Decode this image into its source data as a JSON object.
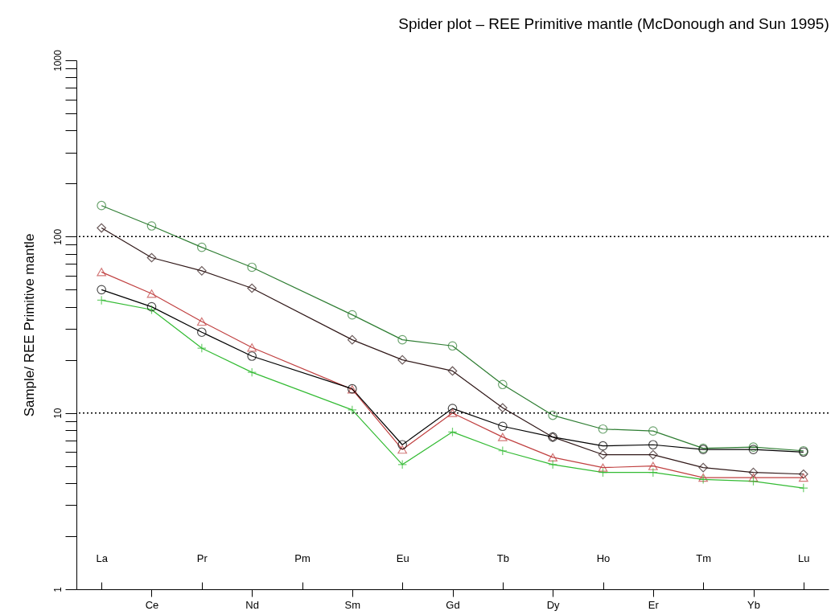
{
  "chart_data": {
    "type": "line",
    "title": "Spider plot – REE Primitive mantle (McDonough  and  Sun 1995)",
    "ylabel": "Sample/ REE Primitive mantle",
    "categories": [
      "La",
      "Ce",
      "Pr",
      "Nd",
      "Pm",
      "Sm",
      "Eu",
      "Gd",
      "Tb",
      "Dy",
      "Ho",
      "Er",
      "Tm",
      "Yb",
      "Lu"
    ],
    "series": [
      {
        "color": "#2e7d32",
        "marker": "circle",
        "values": [
          150,
          115,
          87,
          67,
          null,
          36,
          26,
          24,
          14.5,
          9.7,
          8.1,
          7.9,
          6.3,
          6.4,
          6.1
        ]
      },
      {
        "color": "#301818",
        "marker": "diamond",
        "values": [
          112,
          76,
          64,
          51,
          null,
          26,
          20,
          17.3,
          10.7,
          7.3,
          5.8,
          5.8,
          4.9,
          4.6,
          4.5
        ]
      },
      {
        "color": "#c04040",
        "marker": "triangle",
        "values": [
          63,
          47.5,
          33,
          23.5,
          null,
          13.6,
          6.2,
          10,
          7.3,
          5.6,
          4.9,
          5.0,
          4.3,
          4.3,
          4.3
        ]
      },
      {
        "color": "#000000",
        "marker": "circle",
        "values": [
          50,
          40,
          28.7,
          21,
          null,
          13.7,
          6.6,
          10.6,
          8.4,
          7.3,
          6.5,
          6.6,
          6.2,
          6.2,
          6.0
        ]
      },
      {
        "color": "#33bb33",
        "marker": "cross",
        "values": [
          43.6,
          38.5,
          23.3,
          17,
          null,
          10.4,
          5.1,
          7.8,
          6.1,
          5.1,
          4.6,
          4.6,
          4.2,
          4.1,
          3.75
        ]
      }
    ],
    "log": true,
    "ylim": [
      1,
      1000
    ],
    "yticks": [
      1,
      {
        "value": 2,
        "label": null
      },
      {
        "value": 3,
        "label": null
      },
      {
        "value": 4,
        "label": null
      },
      {
        "value": 5,
        "label": null
      },
      {
        "value": 6,
        "label": null
      },
      {
        "value": 7,
        "label": null
      },
      {
        "value": 8,
        "label": null
      },
      {
        "value": 9,
        "label": null
      },
      10,
      {
        "value": 20,
        "label": null
      },
      {
        "value": 30,
        "label": null
      },
      {
        "value": 40,
        "label": null
      },
      {
        "value": 50,
        "label": null
      },
      {
        "value": 60,
        "label": null
      },
      {
        "value": 70,
        "label": null
      },
      {
        "value": 80,
        "label": null
      },
      {
        "value": 90,
        "label": null
      },
      100,
      {
        "value": 200,
        "label": null
      },
      {
        "value": 300,
        "label": null
      },
      {
        "value": 400,
        "label": null
      },
      {
        "value": 500,
        "label": null
      },
      {
        "value": 600,
        "label": null
      },
      {
        "value": 700,
        "label": null
      },
      {
        "value": 800,
        "label": null
      },
      {
        "value": 900,
        "label": null
      },
      1000
    ],
    "ref_lines": [
      {
        "axis": "y",
        "value": 10,
        "line_style": "dotted",
        "color": "#000000"
      },
      {
        "axis": "y",
        "value": 100,
        "line_style": "dotted",
        "color": "#000000"
      }
    ],
    "grid": false
  }
}
